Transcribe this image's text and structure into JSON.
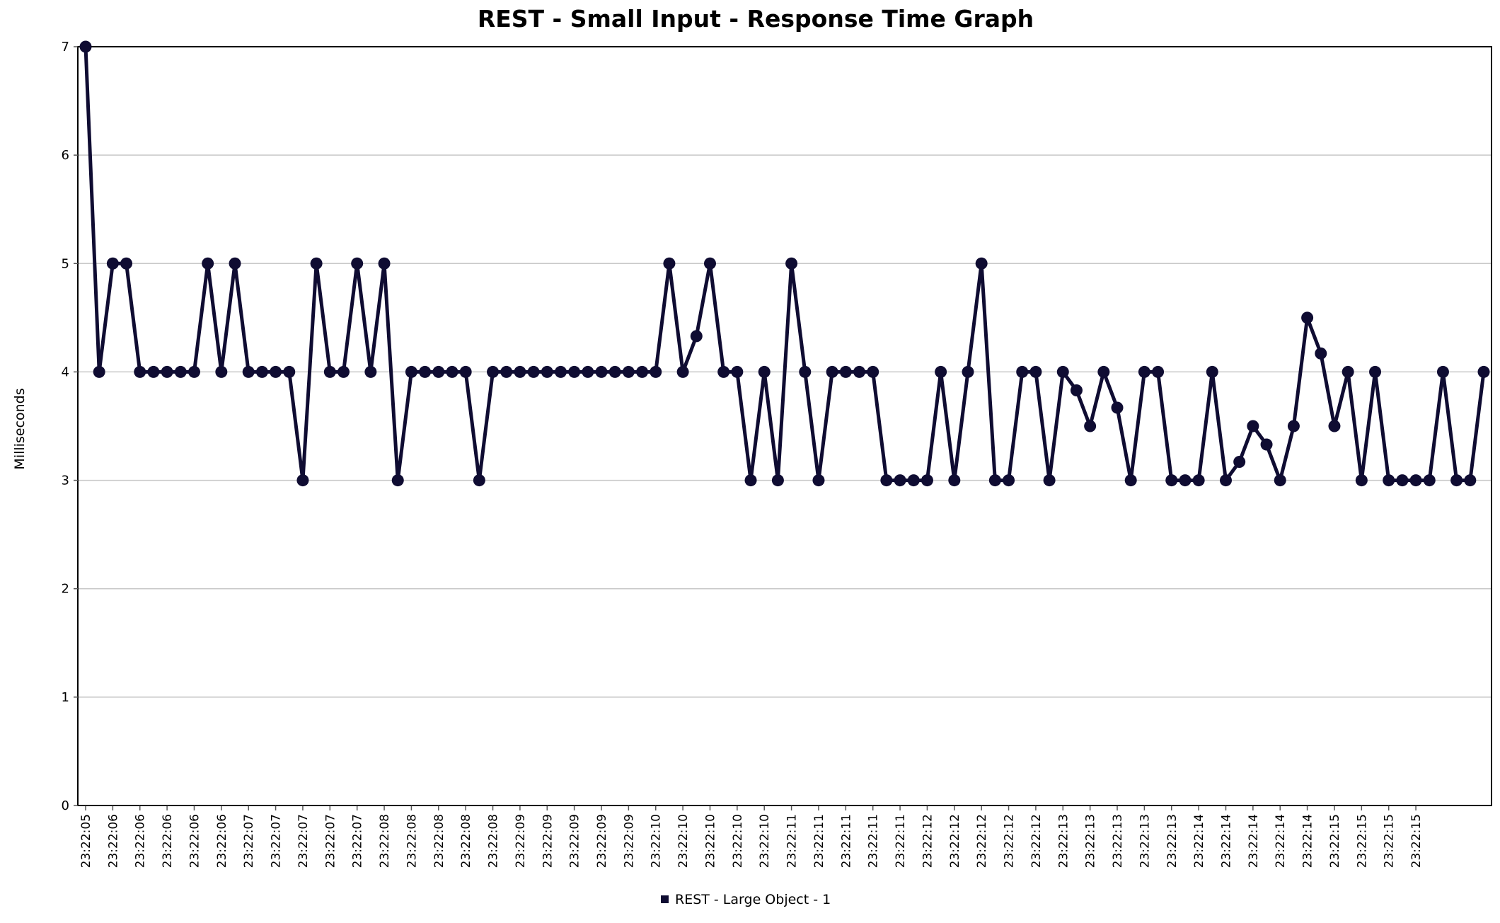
{
  "chart_data": {
    "type": "line",
    "title": "REST - Small Input - Response Time Graph",
    "xlabel": "",
    "ylabel": "Milliseconds",
    "ylim": [
      0,
      7
    ],
    "yticks": [
      0,
      1,
      2,
      3,
      4,
      5,
      6,
      7
    ],
    "grid": true,
    "legend_position": "bottom-center",
    "line_color": "#0f0c32",
    "x_tick_labels": [
      "23:22:05",
      "23:22:06",
      "23:22:06",
      "23:22:06",
      "23:22:06",
      "23:22:06",
      "23:22:07",
      "23:22:07",
      "23:22:07",
      "23:22:07",
      "23:22:07",
      "23:22:08",
      "23:22:08",
      "23:22:08",
      "23:22:08",
      "23:22:08",
      "23:22:09",
      "23:22:09",
      "23:22:09",
      "23:22:09",
      "23:22:09",
      "23:22:10",
      "23:22:10",
      "23:22:10",
      "23:22:10",
      "23:22:10",
      "23:22:11",
      "23:22:11",
      "23:22:11",
      "23:22:11",
      "23:22:11",
      "23:22:12",
      "23:22:12",
      "23:22:12",
      "23:22:12",
      "23:22:12",
      "23:22:13",
      "23:22:13",
      "23:22:13",
      "23:22:13",
      "23:22:13",
      "23:22:14",
      "23:22:14",
      "23:22:14",
      "23:22:14",
      "23:22:14",
      "23:22:15",
      "23:22:15",
      "23:22:15",
      "23:22:15"
    ],
    "series": [
      {
        "name": "REST - Large Object - 1",
        "values": [
          7,
          4,
          5,
          5,
          4,
          4,
          4,
          4,
          4,
          5,
          4,
          5,
          4,
          4,
          4,
          4,
          3,
          5,
          4,
          4,
          5,
          4,
          5,
          3,
          4,
          4,
          4,
          4,
          4,
          3,
          4,
          4,
          4,
          4,
          4,
          4,
          4,
          4,
          4,
          4,
          4,
          4,
          4,
          5,
          4,
          4.33,
          5,
          4,
          4,
          3,
          4,
          3,
          5,
          4,
          3,
          4,
          4,
          4,
          4,
          3,
          3,
          3,
          3,
          4,
          3,
          4,
          5,
          3,
          3,
          4,
          4,
          3,
          4,
          3.83,
          3.5,
          4,
          3.67,
          3,
          4,
          4,
          3,
          3,
          3,
          4,
          3,
          3.17,
          3.5,
          3.33,
          3,
          3.5,
          4.5,
          4.17,
          3.5,
          4,
          3,
          4,
          3,
          3,
          3,
          3,
          4,
          3,
          3,
          4
        ]
      }
    ]
  }
}
